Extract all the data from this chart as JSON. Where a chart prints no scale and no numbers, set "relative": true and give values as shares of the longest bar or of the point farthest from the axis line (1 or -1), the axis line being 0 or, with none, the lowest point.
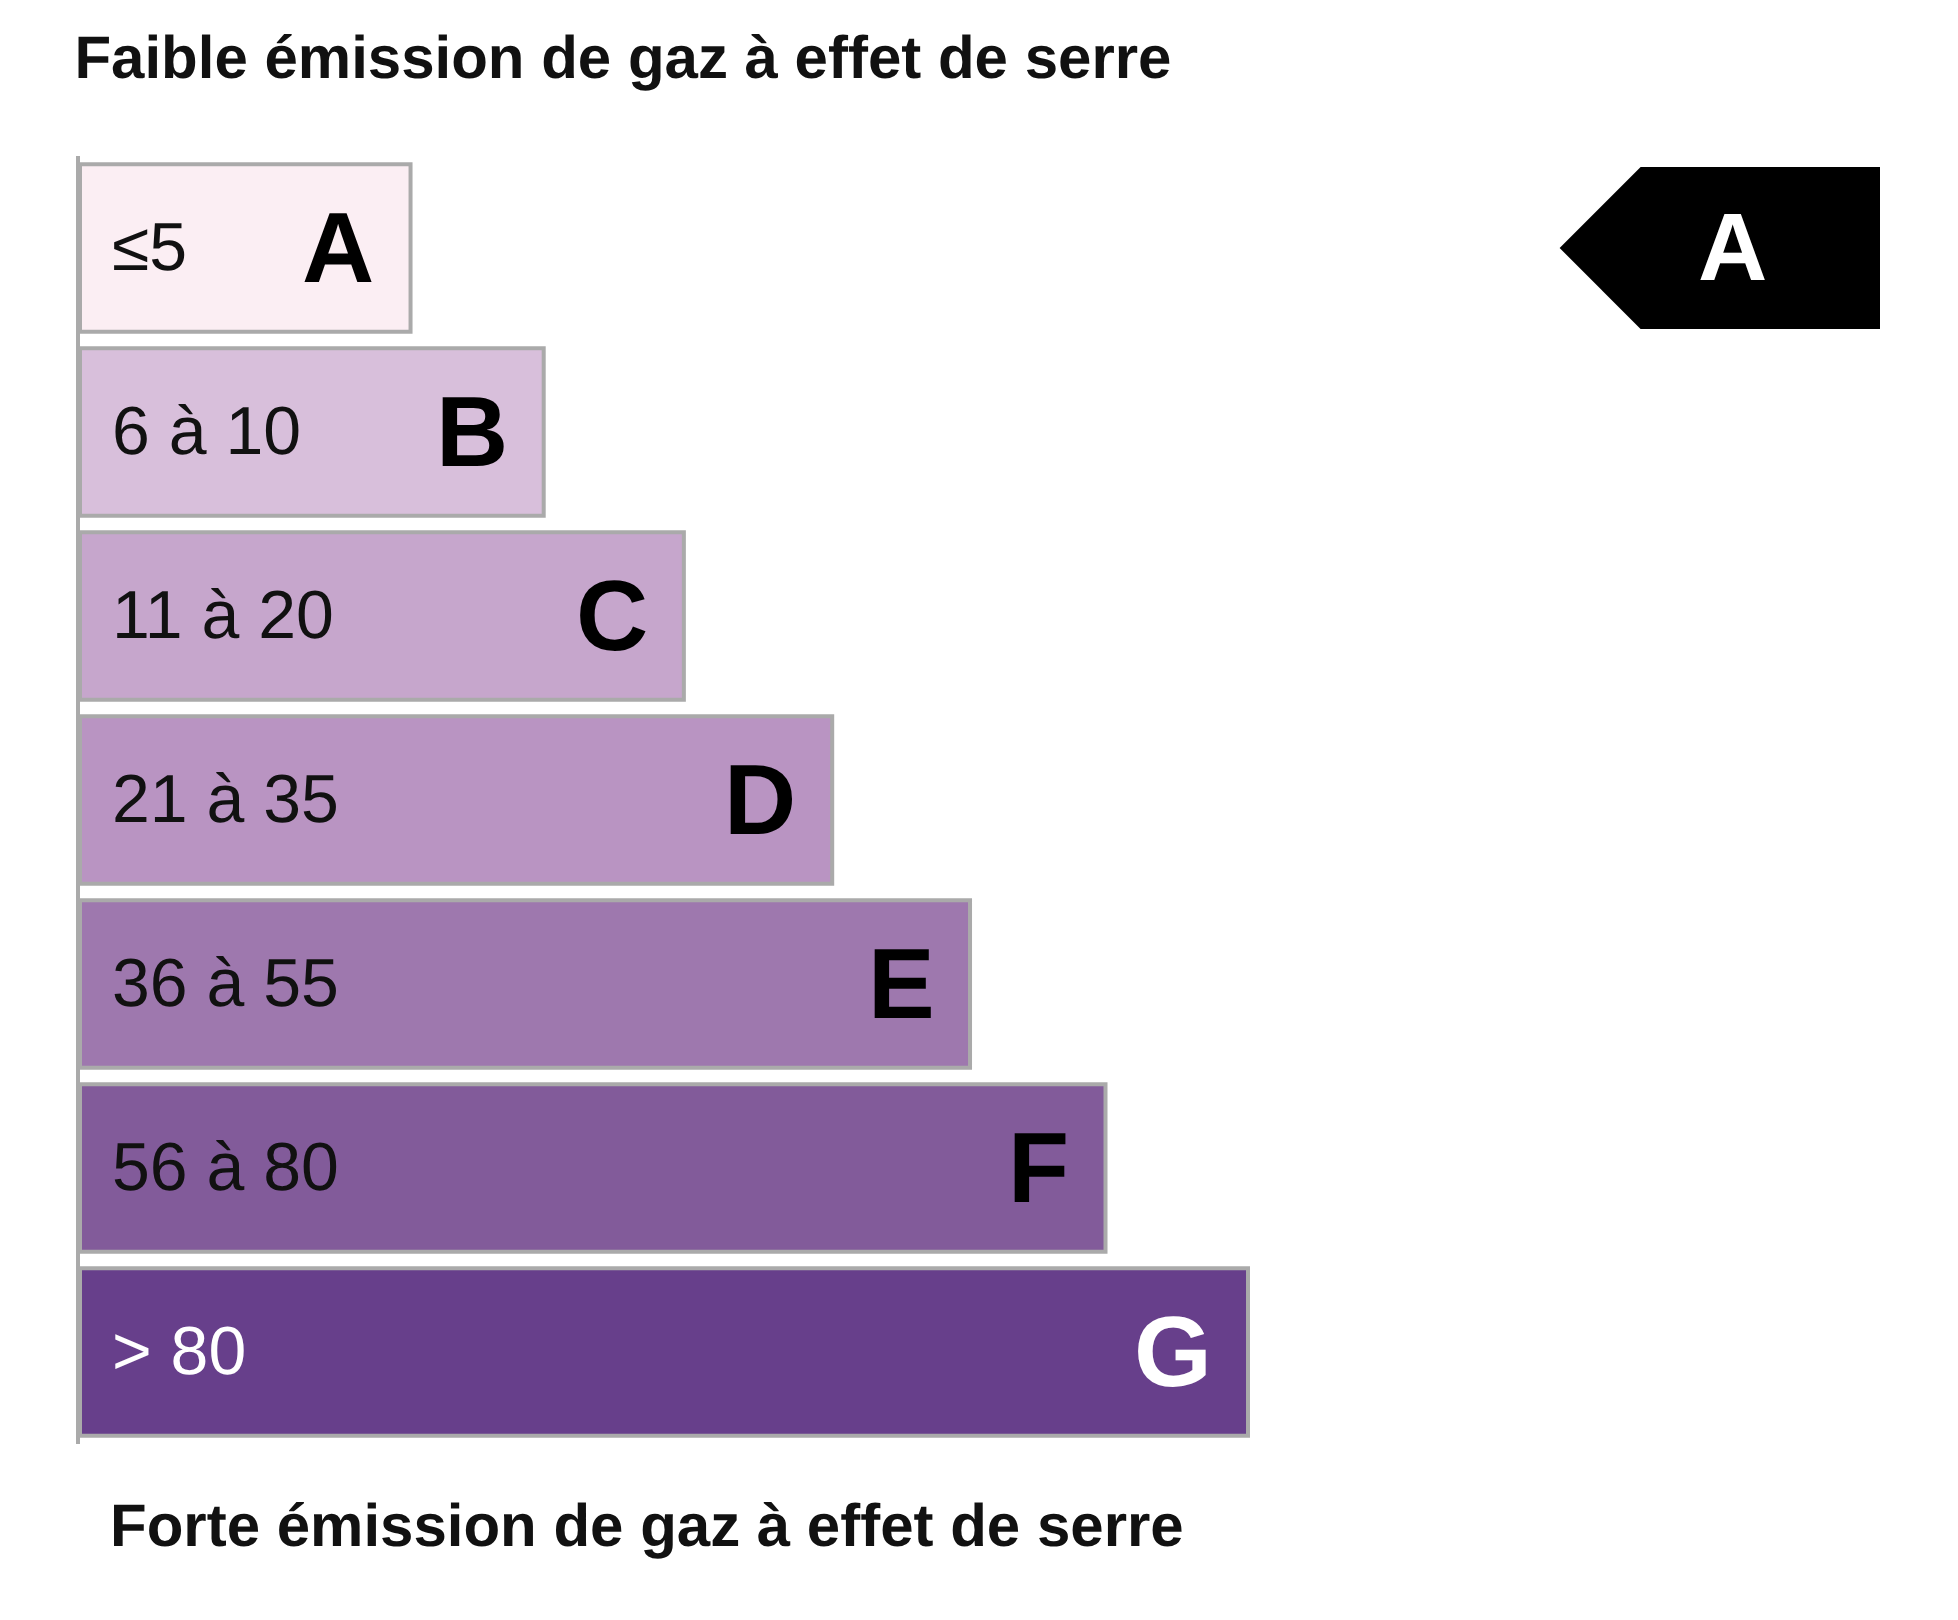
{
  "chart_data": {
    "type": "bar",
    "orientation": "horizontal",
    "relative": true,
    "title": "Faible émission de gaz à effet de serre",
    "categories": [
      "A",
      "B",
      "C",
      "D",
      "E",
      "F",
      "G"
    ],
    "values": [
      0.283,
      0.397,
      0.517,
      0.644,
      0.762,
      0.878,
      1
    ],
    "colors": [
      "#fbeef3",
      "#d8bfdb",
      "#c6a6cc",
      "#b994c2",
      "#9e78ae",
      "#825b9a",
      "#673f8b"
    ],
    "annotations": [
      "≤5",
      "6 à 10",
      "11 à 20",
      "21 à 35",
      "36 à 55",
      "56 à 80",
      "> 80",
      "Forte émission de gaz à effet de serre",
      "A"
    ]
  }
}
